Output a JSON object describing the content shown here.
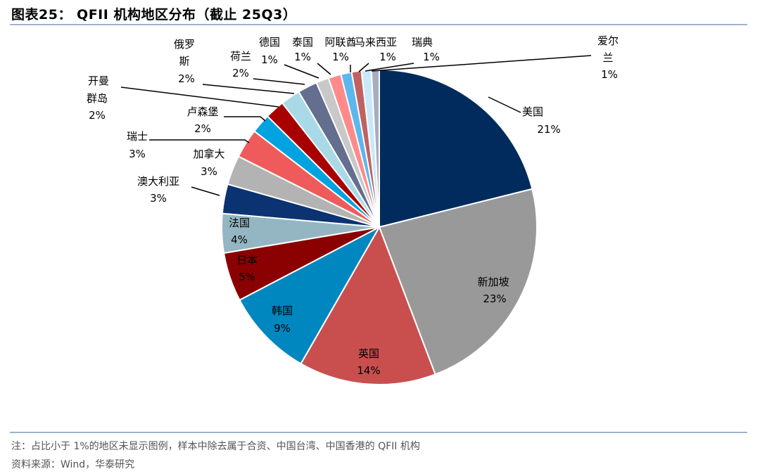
{
  "title": "图表25：  QFII 机构地区分布（截止 25Q3）",
  "notes": {
    "note": "注：占比小于 1%的地区未显示图例，样本中除去属于合资、中国台湾、中国香港的 QFII 机构",
    "source": "资料来源：Wind，华泰研究"
  },
  "chart_data": {
    "type": "pie",
    "title": "QFII 机构地区分布（截止 25Q3）",
    "unit": "%",
    "start": "top, clockwise",
    "slices": [
      {
        "name": "美国",
        "value": 21,
        "label": "21%",
        "color": "#002b5c"
      },
      {
        "name": "新加坡",
        "value": 23,
        "label": "23%",
        "color": "#999999"
      },
      {
        "name": "英国",
        "value": 14,
        "label": "14%",
        "color": "#c94f4f"
      },
      {
        "name": "韩国",
        "value": 9,
        "label": "9%",
        "color": "#0087c0"
      },
      {
        "name": "日本",
        "value": 5,
        "label": "5%",
        "color": "#8b0000"
      },
      {
        "name": "法国",
        "value": 4,
        "label": "4%",
        "color": "#94b6c3"
      },
      {
        "name": "澳大利亚",
        "value": 3,
        "label": "3%",
        "color": "#0b3371"
      },
      {
        "name": "加拿大",
        "value": 3,
        "label": "3%",
        "color": "#b3b3b3"
      },
      {
        "name": "瑞士",
        "value": 3,
        "label": "3%",
        "color": "#ef5b5b"
      },
      {
        "name": "卢森堡",
        "value": 2,
        "label": "2%",
        "color": "#00a2e0"
      },
      {
        "name": "开曼群岛",
        "value": 2,
        "label": "2%",
        "color": "#a80000"
      },
      {
        "name": "俄罗斯",
        "value": 2,
        "label": "2%",
        "color": "#a9d9e6"
      },
      {
        "name": "荷兰",
        "value": 2,
        "label": "2%",
        "color": "#646e8e"
      },
      {
        "name": "德国",
        "value": 1.3,
        "label": "1%",
        "color": "#c8c8c8"
      },
      {
        "name": "泰国",
        "value": 1.3,
        "label": "1%",
        "color": "#ff8a8a"
      },
      {
        "name": "阿联酋",
        "value": 1.1,
        "label": "1%",
        "color": "#5db7ee"
      },
      {
        "name": "马来西亚",
        "value": 1,
        "label": "1%",
        "color": "#c06262"
      },
      {
        "name": "瑞典",
        "value": 1,
        "label": "1%",
        "color": "#c9e9fa"
      },
      {
        "name": "爱尔兰",
        "value": 0.8,
        "label": "1%",
        "color": "#a7adc0"
      }
    ]
  }
}
